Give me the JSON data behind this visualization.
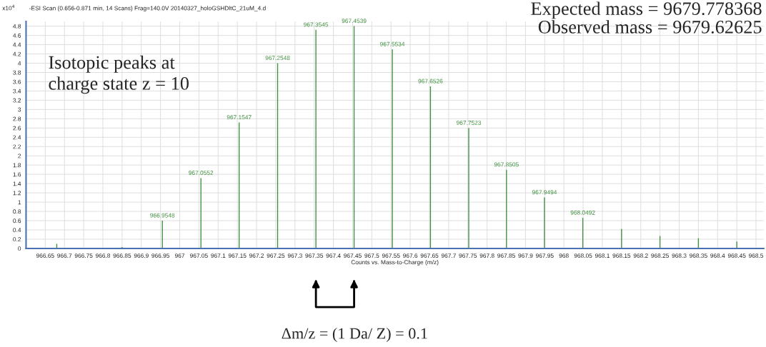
{
  "chart_data": {
    "type": "bar",
    "title": "-ESI Scan (0.656-0.871 min, 14 Scans) Frag=140.0V 20140327_holoGSHDltC_21uM_4.d",
    "xlabel": "Counts vs. Mass-to-Charge (m/z)",
    "ylabel": "x10$^{4}$",
    "x": [
      966.68,
      966.77,
      966.85,
      966.9548,
      967.0552,
      967.1547,
      967.2548,
      967.3545,
      967.4539,
      967.5534,
      967.6526,
      967.7523,
      967.8505,
      967.9494,
      968.0492,
      968.15,
      968.25,
      968.35,
      968.45
    ],
    "values": [
      0.1,
      null,
      0.03,
      0.6,
      1.52,
      2.72,
      4.0,
      4.72,
      4.8,
      4.3,
      3.5,
      2.6,
      1.7,
      1.1,
      0.66,
      0.42,
      0.27,
      0.22,
      0.15
    ],
    "color": "#3f8f3f",
    "xlim": [
      966.6,
      968.52
    ],
    "xticks": [
      966.65,
      966.7,
      966.75,
      966.8,
      966.85,
      966.9,
      966.95,
      967,
      967.05,
      967.1,
      967.15,
      967.2,
      967.25,
      967.3,
      967.35,
      967.4,
      967.45,
      967.5,
      967.55,
      967.6,
      967.65,
      967.7,
      967.75,
      967.8,
      967.85,
      967.9,
      967.95,
      968,
      968.05,
      968.1,
      968.15,
      968.2,
      968.25,
      968.3,
      968.35,
      968.4,
      968.45,
      968.5
    ],
    "ylim": [
      0,
      4.9
    ],
    "yticks": [
      0,
      0.2,
      0.4,
      0.6,
      0.8,
      1,
      1.2,
      1.4,
      1.6,
      1.8,
      2,
      2.2,
      2.4,
      2.6,
      2.8,
      3,
      3.2,
      3.4,
      3.6,
      3.8,
      4,
      4.2,
      4.4,
      4.6,
      4.8
    ],
    "grid": true,
    "annotations": [
      "Isotopic peaks at\ncharge state z = 10",
      "Expected mass = 9679.778368\nObserved mass = 9679.62625",
      "Δm/z = (1 Da/ Z) = 0.1",
      {
        "text": "966.9548",
        "x": 966.9548,
        "y": 0.6
      },
      {
        "text": "967.0552",
        "x": 967.0552,
        "y": 1.52
      },
      {
        "text": "967.1547",
        "x": 967.1547,
        "y": 2.72
      },
      {
        "text": "967.2548",
        "x": 967.2548,
        "y": 4.0
      },
      {
        "text": "967.3545",
        "x": 967.3545,
        "y": 4.72
      },
      {
        "text": "967.4539",
        "x": 967.4539,
        "y": 4.8
      },
      {
        "text": "967.5534",
        "x": 967.5534,
        "y": 4.3
      },
      {
        "text": "967.6526",
        "x": 967.6526,
        "y": 3.5
      },
      {
        "text": "967.7523",
        "x": 967.7523,
        "y": 2.6
      },
      {
        "text": "967.8505",
        "x": 967.8505,
        "y": 1.7
      },
      {
        "text": "967.9494",
        "x": 967.9494,
        "y": 1.1
      },
      {
        "text": "968.0492",
        "x": 968.0492,
        "y": 0.66
      }
    ]
  }
}
